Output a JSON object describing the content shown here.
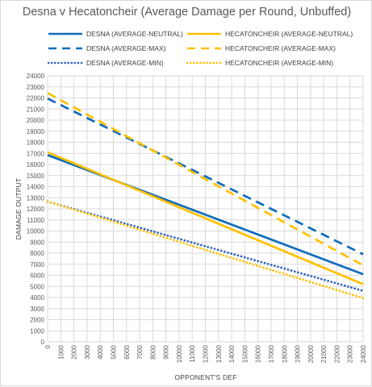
{
  "chart_data": {
    "type": "line",
    "title": "Desna v Hecatoncheir (Average Damage per Round, Unbuffed)",
    "xlabel": "OPPONENT'S DEF",
    "ylabel": "DAMAGE OUTPUT",
    "xlim": [
      0,
      24000
    ],
    "ylim": [
      0,
      24000
    ],
    "x_ticks": [
      "0",
      "1000",
      "2000",
      "3000",
      "4000",
      "5000",
      "6000",
      "7000",
      "8000",
      "9000",
      "10000",
      "11000",
      "12000",
      "13000",
      "14000",
      "15000",
      "16000",
      "17000",
      "18000",
      "19000",
      "20000",
      "21000",
      "22000",
      "23000",
      "24000"
    ],
    "y_ticks": [
      "0",
      "1000",
      "2000",
      "3000",
      "4000",
      "5000",
      "6000",
      "7000",
      "8000",
      "9000",
      "10000",
      "11000",
      "12000",
      "13000",
      "14000",
      "15000",
      "16000",
      "17000",
      "18000",
      "19000",
      "20000",
      "21000",
      "22000",
      "23000",
      "24000"
    ],
    "grid": true,
    "legend_position": "top",
    "series": [
      {
        "name": "DESNA (AVERAGE-NEUTRAL)",
        "color": "#0f6cbd",
        "style": "solid",
        "points": [
          [
            0,
            16850
          ],
          [
            24000,
            6100
          ]
        ]
      },
      {
        "name": "HECATONCHEIR (AVERAGE-NEUTRAL)",
        "color": "#ffc000",
        "style": "solid",
        "points": [
          [
            0,
            17100
          ],
          [
            24000,
            5200
          ]
        ]
      },
      {
        "name": "DESNA (AVERAGE-MAX)",
        "color": "#0f6cbd",
        "style": "dashed",
        "points": [
          [
            0,
            21950
          ],
          [
            24000,
            7900
          ]
        ]
      },
      {
        "name": "HECATONCHEIR (AVERAGE-MAX)",
        "color": "#ffc000",
        "style": "dashed",
        "points": [
          [
            0,
            22450
          ],
          [
            24000,
            6900
          ]
        ]
      },
      {
        "name": "DESNA (AVERAGE-MIN)",
        "color": "#2e5fbe",
        "style": "dotted",
        "points": [
          [
            0,
            12650
          ],
          [
            24000,
            4600
          ]
        ]
      },
      {
        "name": "HECATONCHEIR (AVERAGE-MIN)",
        "color": "#ffc000",
        "style": "dotted",
        "points": [
          [
            0,
            12650
          ],
          [
            24000,
            3950
          ]
        ]
      }
    ]
  }
}
